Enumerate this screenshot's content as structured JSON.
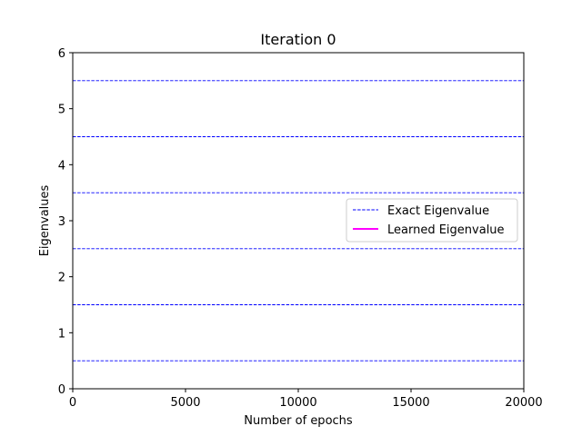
{
  "chart_data": {
    "type": "line",
    "title": "Iteration 0",
    "xlabel": "Number of epochs",
    "ylabel": "Eigenvalues",
    "xlim": [
      0,
      20000
    ],
    "ylim": [
      0,
      6
    ],
    "xticks": [
      0,
      5000,
      10000,
      15000,
      20000
    ],
    "yticks": [
      0,
      1,
      2,
      3,
      4,
      5,
      6
    ],
    "grid": false,
    "legend_position": "right",
    "series": [
      {
        "name": "Exact Eigenvalue",
        "style": "dashed",
        "color": "#0000ff",
        "horizontal_values": [
          0.5,
          1.5,
          2.5,
          3.5,
          4.5,
          5.5
        ]
      },
      {
        "name": "Learned Eigenvalue",
        "style": "solid",
        "color": "#ff00ff",
        "x": [],
        "y": []
      }
    ]
  }
}
